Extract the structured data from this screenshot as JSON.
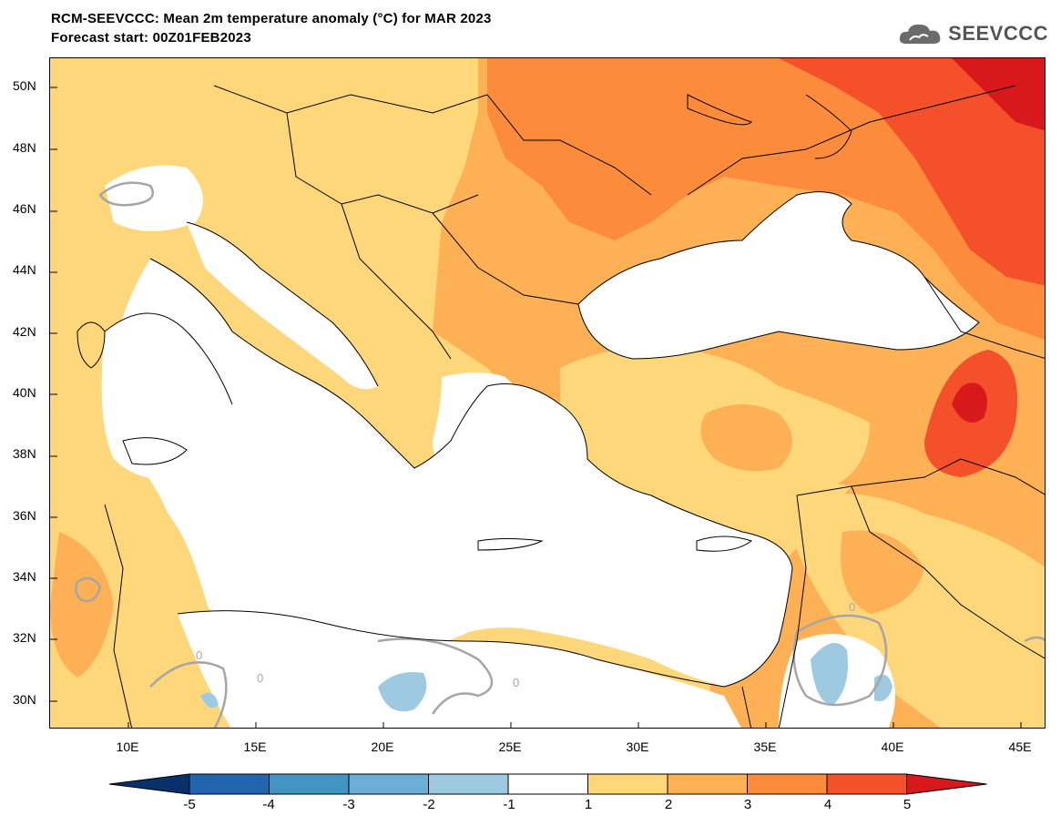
{
  "header": {
    "title": "RCM-SEEVCCC: Mean 2m temperature anomaly (°C) for MAR 2023",
    "subtitle": "Forecast start: 00Z01FEB2023",
    "logo_text": "SEEVCCC"
  },
  "map": {
    "lat_labels": [
      "50N",
      "48N",
      "46N",
      "44N",
      "42N",
      "40N",
      "38N",
      "36N",
      "34N",
      "32N",
      "30N"
    ],
    "lon_labels": [
      "10E",
      "15E",
      "20E",
      "25E",
      "30E",
      "35E",
      "40E",
      "45E"
    ],
    "contour_label": "0"
  },
  "legend": {
    "labels": [
      "-5",
      "-4",
      "-3",
      "-2",
      "-1",
      "1",
      "2",
      "3",
      "4",
      "5"
    ],
    "colors": [
      "#08306b",
      "#2166ac",
      "#4393c3",
      "#6baed6",
      "#9ecae1",
      "#ffffff",
      "#fdd77a",
      "#fdb054",
      "#fc8c3b",
      "#f4502a",
      "#d7191c"
    ]
  }
}
